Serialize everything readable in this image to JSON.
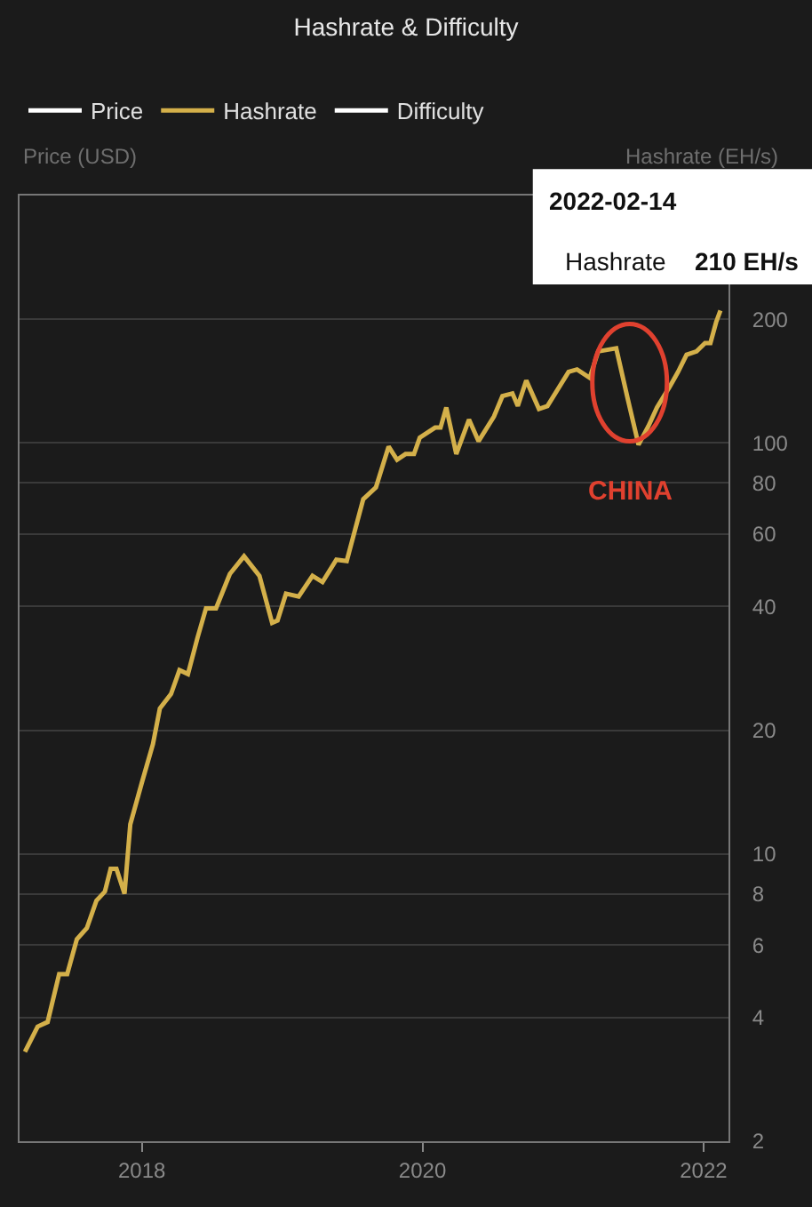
{
  "chart_data": {
    "type": "line",
    "title": "Hashrate & Difficulty",
    "ylabel": "Hashrate (EH/s)",
    "x": [
      "2017-03-03",
      "2017-04-05",
      "2017-05-01",
      "2017-05-31",
      "2017-06-21",
      "2017-07-16",
      "2017-08-11",
      "2017-09-05",
      "2017-09-27",
      "2017-10-12",
      "2017-10-27",
      "2017-11-17",
      "2017-12-02",
      "2018-01-01",
      "2018-01-30",
      "2018-02-17",
      "2018-03-18",
      "2018-04-09",
      "2018-05-01",
      "2018-05-26",
      "2018-06-17",
      "2018-07-13",
      "2018-08-18",
      "2018-09-24",
      "2018-11-03",
      "2018-12-06",
      "2018-12-20",
      "2019-01-11",
      "2019-02-13",
      "2019-03-21",
      "2019-04-16",
      "2019-05-22",
      "2019-06-18",
      "2019-07-31",
      "2019-09-02",
      "2019-10-05",
      "2019-10-27",
      "2019-11-18",
      "2019-12-10",
      "2019-12-25",
      "2020-02-03",
      "2020-02-17",
      "2020-03-03",
      "2020-03-29",
      "2020-05-01",
      "2020-05-26",
      "2020-07-05",
      "2020-07-27",
      "2020-08-22",
      "2020-09-05",
      "2020-09-27",
      "2020-10-30",
      "2020-11-21",
      "2021-01-15",
      "2021-02-06",
      "2021-03-11",
      "2021-04-02",
      "2021-05-19",
      "2021-06-18",
      "2021-07-16",
      "2021-08-11",
      "2021-09-02",
      "2021-10-05",
      "2021-10-27",
      "2021-11-18",
      "2021-12-14",
      "2022-01-05",
      "2022-01-19",
      "2022-02-03",
      "2022-02-14"
    ],
    "series": [
      {
        "name": "Price",
        "color": "#ffffff",
        "values": [
          null,
          null,
          null,
          null,
          null,
          null,
          null,
          null,
          null,
          null,
          null,
          null,
          null,
          null,
          null,
          null,
          null,
          null,
          null,
          null,
          null,
          null,
          null,
          null,
          null,
          null,
          null,
          null,
          null,
          null,
          null,
          null,
          null,
          null,
          null,
          null,
          null,
          null,
          null,
          null,
          null,
          null,
          null,
          null,
          null,
          null,
          null,
          null,
          null,
          null,
          null,
          null,
          null,
          null,
          null,
          null,
          null,
          null,
          null,
          null,
          null,
          null,
          null,
          null,
          null,
          null,
          null,
          null,
          null,
          null
        ]
      },
      {
        "name": "Hashrate",
        "color": "#d4b04a",
        "values": [
          3.3,
          3.8,
          3.9,
          5.1,
          5.1,
          6.2,
          6.6,
          7.7,
          8.1,
          9.2,
          9.2,
          8.0,
          11.8,
          14.9,
          18.5,
          22.6,
          24.5,
          28,
          27.4,
          33.6,
          39.6,
          39.6,
          48,
          53,
          47.5,
          36.5,
          37,
          43,
          42.3,
          47.5,
          45.9,
          52,
          51.6,
          73,
          78,
          98,
          91,
          94,
          94,
          103,
          109,
          109,
          122,
          94,
          114,
          101,
          116,
          130,
          132,
          123,
          142,
          121,
          123,
          149,
          151,
          144,
          167,
          170,
          128,
          99,
          110,
          122,
          137,
          149,
          164,
          167,
          175,
          175,
          197,
          210
        ]
      },
      {
        "name": "Difficulty",
        "color": "#ffffff",
        "values": [
          null,
          null,
          null,
          null,
          null,
          null,
          null,
          null,
          null,
          null,
          null,
          null,
          null,
          null,
          null,
          null,
          null,
          null,
          null,
          null,
          null,
          null,
          null,
          null,
          null,
          null,
          null,
          null,
          null,
          null,
          null,
          null,
          null,
          null,
          null,
          null,
          null,
          null,
          null,
          null,
          null,
          null,
          null,
          null,
          null,
          null,
          null,
          null,
          null,
          null,
          null,
          null,
          null,
          null,
          null,
          null,
          null,
          null,
          null,
          null,
          null,
          null,
          null,
          null,
          null,
          null,
          null,
          null,
          null,
          null
        ]
      }
    ],
    "xlim": [
      "2017-02-17",
      "2022-03-07"
    ],
    "xticks": [
      {
        "value": "2018",
        "label": "2018"
      },
      {
        "value": "2020",
        "label": "2020"
      },
      {
        "value": "2022",
        "label": "2022"
      }
    ],
    "ylim": [
      2,
      400
    ],
    "yticks": [
      2,
      4,
      6,
      8,
      10,
      20,
      40,
      60,
      80,
      100,
      200
    ],
    "log": "y",
    "grid": "y",
    "legend": "top left",
    "marker": "none",
    "line_style": "solid",
    "annotations": [
      "Price (USD)",
      "2022-02-14",
      "Hashrate",
      "210 EH/s",
      {
        "text": "CHINA",
        "x": "2021-07-16",
        "y": 99
      }
    ]
  }
}
